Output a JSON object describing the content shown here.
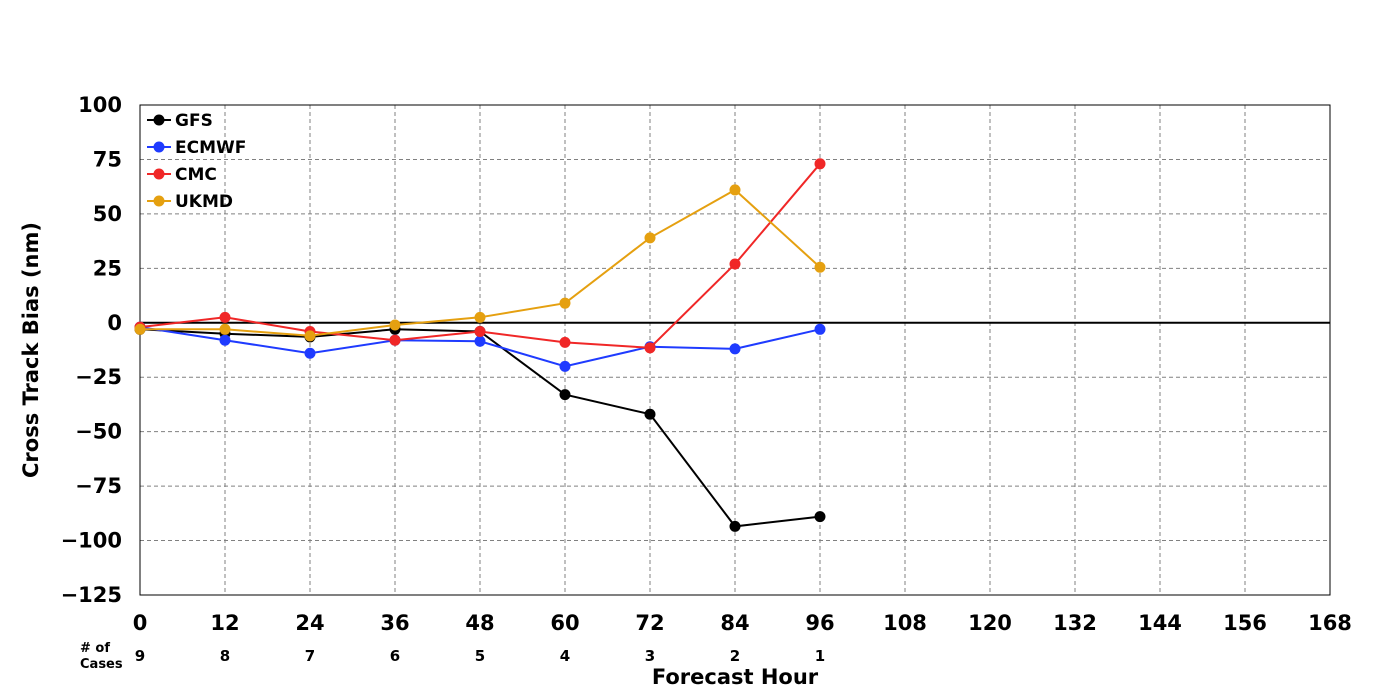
{
  "chart_data": {
    "type": "line",
    "title": "",
    "xlabel": "Forecast Hour",
    "ylabel": "Cross Track Bias (nm)",
    "xlim": [
      0,
      168
    ],
    "ylim": [
      -125,
      100
    ],
    "x_ticks": [
      0,
      12,
      24,
      36,
      48,
      60,
      72,
      84,
      96,
      108,
      120,
      132,
      144,
      156,
      168
    ],
    "y_ticks": [
      100,
      75,
      50,
      25,
      0,
      -25,
      -50,
      -75,
      -100,
      -125
    ],
    "y_tick_labels": [
      "100",
      "75",
      "50",
      "25",
      "0",
      "−25",
      "−50",
      "−75",
      "−100",
      "−125"
    ],
    "grid": true,
    "legend_position": "top-left",
    "cases_label": [
      "# of",
      "Cases"
    ],
    "cases": {
      "x": [
        0,
        12,
        24,
        36,
        48,
        60,
        72,
        84,
        96
      ],
      "values": [
        9,
        8,
        7,
        6,
        5,
        4,
        3,
        2,
        1
      ]
    },
    "x": [
      0,
      12,
      24,
      36,
      48,
      60,
      72,
      84,
      96
    ],
    "series": [
      {
        "name": "GFS",
        "color": "#000000",
        "values": [
          -3,
          -5,
          -6.5,
          -3,
          -4,
          -33,
          -42,
          -93.5,
          -89
        ]
      },
      {
        "name": "ECMWF",
        "color": "#1f3bff",
        "values": [
          -2,
          -8,
          -14,
          -8,
          -8.5,
          -20,
          -11,
          -12,
          -3
        ]
      },
      {
        "name": "CMC",
        "color": "#f02727",
        "values": [
          -2,
          2.5,
          -4,
          -8,
          -4,
          -9,
          -11.5,
          27,
          73
        ]
      },
      {
        "name": "UKMD",
        "color": "#e5a010",
        "values": [
          -3,
          -3,
          -6,
          -1,
          2.5,
          9,
          39,
          61,
          25.5
        ]
      }
    ]
  }
}
